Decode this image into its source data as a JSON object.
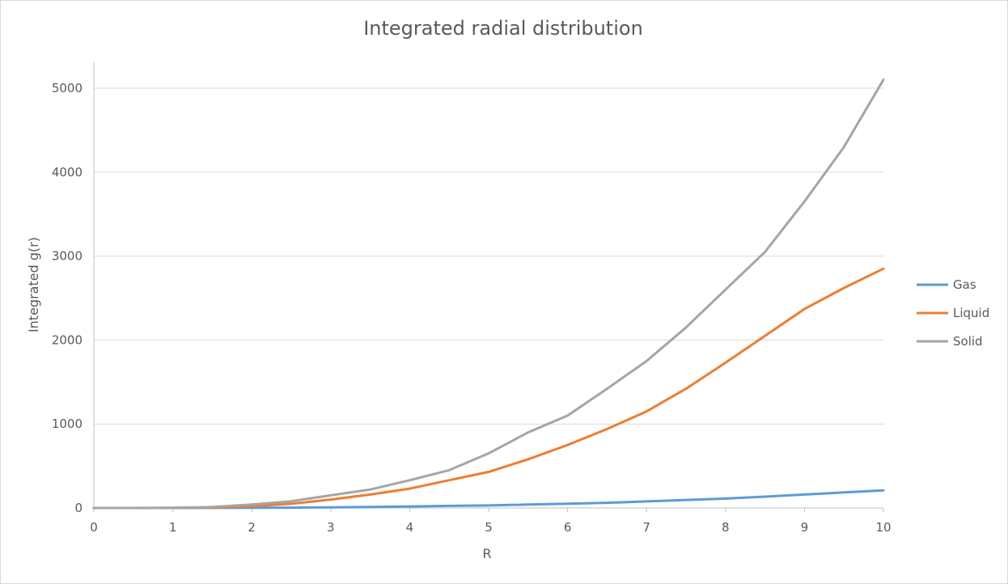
{
  "chart_data": {
    "type": "line",
    "title": "Integrated radial distribution",
    "xlabel": "R",
    "ylabel": "Integrated g(r)",
    "xlim": [
      0,
      10
    ],
    "ylim": [
      0,
      5000
    ],
    "x_ticks": [
      "0",
      "1",
      "2",
      "3",
      "4",
      "5",
      "6",
      "7",
      "8",
      "9",
      "10"
    ],
    "y_ticks": [
      "0",
      "1000",
      "2000",
      "3000",
      "4000",
      "5000"
    ],
    "grid": true,
    "legend_position": "right",
    "x": [
      0,
      0.5,
      1,
      1.5,
      2,
      2.5,
      3,
      3.5,
      4,
      4.5,
      5,
      5.5,
      6,
      6.5,
      7,
      7.5,
      8,
      8.5,
      9,
      9.5,
      10
    ],
    "series": [
      {
        "name": "Gas",
        "color": "#5b9bd5",
        "values": [
          0,
          0,
          0.2,
          1,
          2,
          4,
          8,
          12,
          18,
          25,
          30,
          40,
          50,
          62,
          78,
          95,
          112,
          135,
          160,
          185,
          210
        ]
      },
      {
        "name": "Liquid",
        "color": "#ed7d31",
        "values": [
          0,
          0,
          1,
          5,
          20,
          50,
          100,
          160,
          230,
          330,
          430,
          580,
          750,
          940,
          1150,
          1420,
          1730,
          2050,
          2370,
          2620,
          2850
        ]
      },
      {
        "name": "Solid",
        "color": "#a5a5a5",
        "values": [
          0,
          0,
          2,
          12,
          40,
          80,
          150,
          220,
          330,
          450,
          650,
          900,
          1100,
          1420,
          1750,
          2150,
          2600,
          3050,
          3650,
          4300,
          5100
        ]
      }
    ]
  }
}
